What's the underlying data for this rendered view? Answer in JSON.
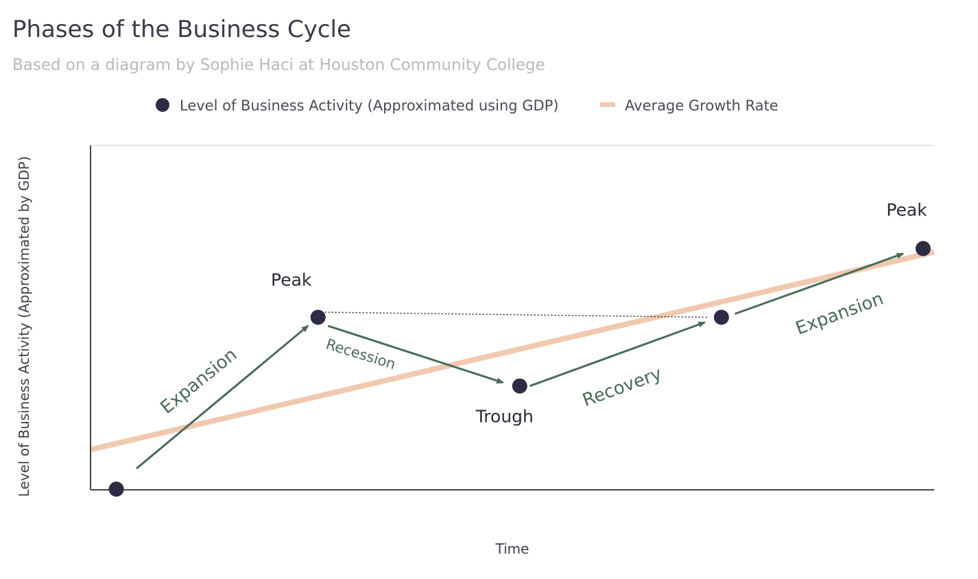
{
  "chart_data": {
    "type": "line",
    "title": "Phases of the Business Cycle",
    "subtitle": "Based on a diagram by Sophie Haci at Houston Community College",
    "xlabel": "Time",
    "ylabel": "Level of Business Activity (Approximated by GDP)",
    "grid": false,
    "legend_position": "top-center",
    "xlim": [
      0,
      12.2
    ],
    "ylim": [
      0,
      10
    ],
    "series": [
      {
        "name": "Level of Business Activity (Approximated using GDP)",
        "color": "#2e2b45",
        "marker": "circle",
        "line": false,
        "points": [
          {
            "x": 0.2,
            "y": 0.0,
            "label": ""
          },
          {
            "x": 3.2,
            "y": 5.0,
            "label": "Peak"
          },
          {
            "x": 6.2,
            "y": 3.0,
            "label": "Trough"
          },
          {
            "x": 9.2,
            "y": 5.0,
            "label": ""
          },
          {
            "x": 12.2,
            "y": 7.0,
            "label": "Peak"
          }
        ]
      },
      {
        "name": "Average Growth Rate",
        "color": "#f0c9b0",
        "type": "line",
        "points": [
          {
            "x": 0.0,
            "y": 1.15
          },
          {
            "x": 12.2,
            "y": 6.9
          }
        ]
      }
    ],
    "annotations": [
      {
        "kind": "phase-arrow",
        "text": "Expansion",
        "from_x": 0.5,
        "from_y": 0.6,
        "to_x": 3.05,
        "to_y": 4.75
      },
      {
        "kind": "phase-arrow",
        "text": "Recession",
        "from_x": 3.35,
        "from_y": 4.75,
        "to_x": 5.95,
        "to_y": 3.1
      },
      {
        "kind": "phase-arrow",
        "text": "Recovery",
        "from_x": 6.35,
        "from_y": 3.0,
        "to_x": 8.95,
        "to_y": 4.85
      },
      {
        "kind": "phase-arrow",
        "text": "Expansion",
        "from_x": 9.4,
        "from_y": 5.1,
        "to_x": 11.9,
        "to_y": 6.85
      },
      {
        "kind": "reference-line",
        "style": "dotted",
        "from_x": 3.2,
        "from_y": 5.15,
        "to_x": 9.0,
        "to_y": 5.0
      }
    ],
    "colors": {
      "point": "#2e2b45",
      "average_line": "#f0c9b0",
      "arrow": "#4b6b58",
      "axis": "#444444",
      "dotted": "#222222"
    }
  }
}
